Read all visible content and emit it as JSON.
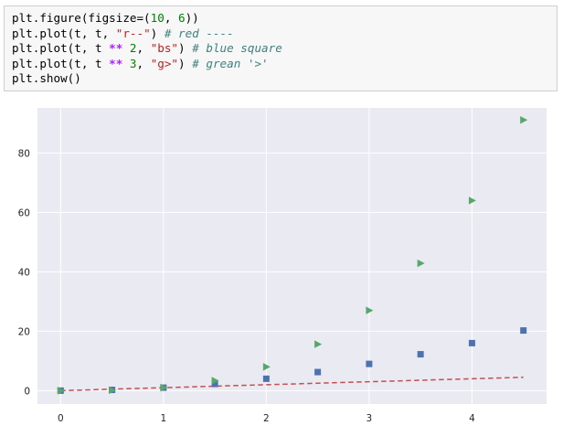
{
  "code": {
    "lines": [
      [
        {
          "t": "plt.figure(figsize=(",
          "c": ""
        },
        {
          "t": "10",
          "c": "num"
        },
        {
          "t": ", ",
          "c": ""
        },
        {
          "t": "6",
          "c": "num"
        },
        {
          "t": "))",
          "c": ""
        }
      ],
      [
        {
          "t": "plt.plot(t, t, ",
          "c": ""
        },
        {
          "t": "\"r--\"",
          "c": "str"
        },
        {
          "t": ") ",
          "c": ""
        },
        {
          "t": "# red ----",
          "c": "com"
        }
      ],
      [
        {
          "t": "plt.plot(t, t ",
          "c": ""
        },
        {
          "t": "**",
          "c": "op"
        },
        {
          "t": " ",
          "c": ""
        },
        {
          "t": "2",
          "c": "num"
        },
        {
          "t": ", ",
          "c": ""
        },
        {
          "t": "\"bs\"",
          "c": "str"
        },
        {
          "t": ") ",
          "c": ""
        },
        {
          "t": "# blue square",
          "c": "com"
        }
      ],
      [
        {
          "t": "plt.plot(t, t ",
          "c": ""
        },
        {
          "t": "**",
          "c": "op"
        },
        {
          "t": " ",
          "c": ""
        },
        {
          "t": "3",
          "c": "num"
        },
        {
          "t": ", ",
          "c": ""
        },
        {
          "t": "\"g>\"",
          "c": "str"
        },
        {
          "t": ") ",
          "c": ""
        },
        {
          "t": "# grean '>'",
          "c": "com"
        }
      ],
      [
        {
          "t": "plt.show()",
          "c": ""
        }
      ]
    ]
  },
  "colors": {
    "plot_bg": "#eaeaf2",
    "grid": "#ffffff",
    "red": "#c44e52",
    "blue": "#4c72b0",
    "green": "#55a868"
  },
  "chart_data": {
    "type": "line",
    "grid": true,
    "xlim": [
      -0.225,
      4.725
    ],
    "ylim": [
      -4.5,
      95.2
    ],
    "xticks": [
      0,
      1,
      2,
      3,
      4
    ],
    "yticks": [
      0,
      20,
      40,
      60,
      80
    ],
    "x": [
      0,
      0.5,
      1,
      1.5,
      2,
      2.5,
      3,
      3.5,
      4,
      4.5
    ],
    "series": [
      {
        "style": "r--",
        "marker": "none",
        "values": [
          0,
          0.5,
          1,
          1.5,
          2,
          2.5,
          3,
          3.5,
          4,
          4.5
        ]
      },
      {
        "style": "bs",
        "marker": "square",
        "values": [
          0,
          0.25,
          1,
          2.25,
          4,
          6.25,
          9,
          12.25,
          16,
          20.25
        ]
      },
      {
        "style": "g>",
        "marker": "triangle-right",
        "values": [
          0,
          0.125,
          1,
          3.375,
          8,
          15.625,
          27,
          42.875,
          64,
          91.125
        ]
      }
    ]
  }
}
